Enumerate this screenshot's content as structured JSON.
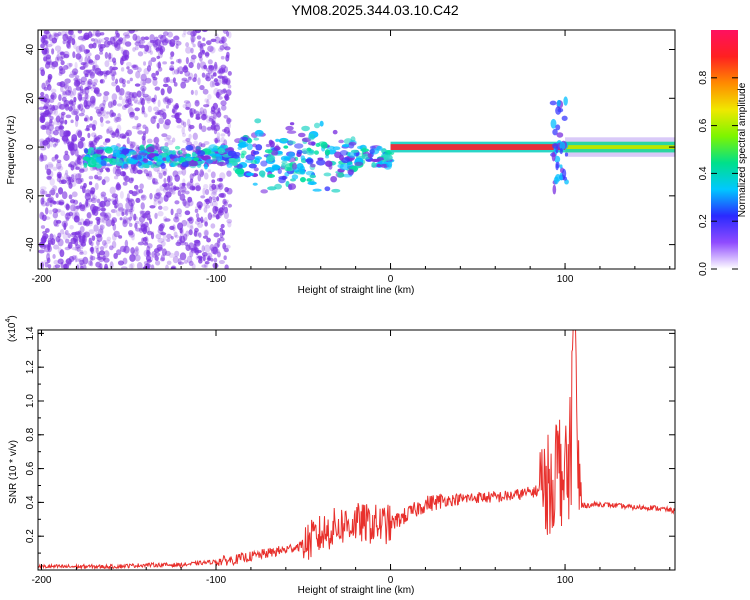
{
  "title": "YM08.2025.344.03.10.C42",
  "colors": {
    "snr_line": "#e8302c",
    "spectrogram_dots": "#7a2fe0",
    "band_core": "#e8303c",
    "band_edge": "#2bd6c8"
  },
  "chart_data": [
    {
      "type": "heatmap",
      "name": "spectrogram",
      "xlabel": "Height of straight line (km)",
      "ylabel": "Frequency (Hz)",
      "xlim": [
        -202,
        163
      ],
      "ylim": [
        -50,
        48
      ],
      "xticks": [
        -200,
        -100,
        0,
        100
      ],
      "yticks": [
        -40,
        -20,
        0,
        20,
        40
      ],
      "description_values": {
        "scattered_noise_x_range": [
          -200,
          -95
        ],
        "band_center_hz": 0,
        "strong_band_x_range": [
          0,
          100
        ],
        "broadband_burst_x": 97
      },
      "colorbar": {
        "label": "Normalized spectral amplitude",
        "ticks": [
          0.0,
          0.2,
          0.4,
          0.6,
          0.8
        ],
        "range": [
          0,
          1
        ],
        "colormap": [
          "#ffffff",
          "#8f4bff",
          "#2a2aff",
          "#00c8ff",
          "#00e08a",
          "#7df500",
          "#f0e800",
          "#ff8a00",
          "#ff2020",
          "#ff1060"
        ]
      }
    },
    {
      "type": "line",
      "name": "snr",
      "xlabel": "Height of straight line (km)",
      "ylabel": "SNR (10 * v/v)",
      "y_multiplier": "(x10",
      "y_multiplier_exp": "4",
      "y_multiplier_close": ")",
      "xlim": [
        -202,
        163
      ],
      "ylim": [
        0,
        1.42
      ],
      "xticks": [
        -200,
        -100,
        0,
        100
      ],
      "yticks": [
        0.2,
        0.4,
        0.6,
        0.8,
        1.0,
        1.2,
        1.4
      ],
      "x": [
        -202,
        -180,
        -160,
        -140,
        -120,
        -100,
        -90,
        -80,
        -70,
        -60,
        -50,
        -40,
        -30,
        -20,
        -10,
        0,
        10,
        20,
        30,
        40,
        50,
        60,
        70,
        80,
        85,
        90,
        95,
        98,
        100,
        103,
        105,
        107,
        110,
        120,
        130,
        140,
        150,
        163
      ],
      "values": [
        0.02,
        0.02,
        0.02,
        0.03,
        0.03,
        0.05,
        0.06,
        0.08,
        0.1,
        0.12,
        0.15,
        0.21,
        0.26,
        0.28,
        0.27,
        0.27,
        0.33,
        0.39,
        0.41,
        0.42,
        0.43,
        0.43,
        0.44,
        0.46,
        0.47,
        0.5,
        0.6,
        0.62,
        0.52,
        0.65,
        1.42,
        0.6,
        0.38,
        0.39,
        0.38,
        0.37,
        0.37,
        0.35
      ]
    }
  ]
}
